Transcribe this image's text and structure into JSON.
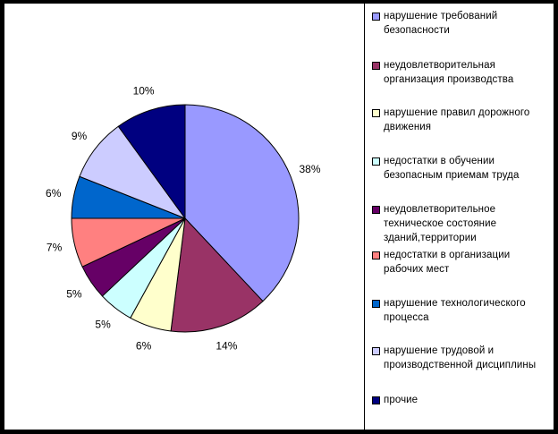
{
  "chart_data": {
    "type": "pie",
    "start": "12 o'clock",
    "direction": "clockwise",
    "slices": [
      {
        "label": "нарушение требований безопасности",
        "value": 38,
        "display": "38%",
        "color": "#9999FF"
      },
      {
        "label": "неудовлетворительная организация производства",
        "value": 14,
        "display": "14%",
        "color": "#993366"
      },
      {
        "label": "нарушение правил дорожного движения",
        "value": 6,
        "display": "6%",
        "color": "#FFFFCC"
      },
      {
        "label": "недостатки в обучении безопасным приемам труда",
        "value": 5,
        "display": "5%",
        "color": "#CCFFFF"
      },
      {
        "label": "неудовлетворительное техническое состояние зданий,территории",
        "value": 5,
        "display": "5%",
        "color": "#660066"
      },
      {
        "label": "недостатки в организации рабочих мест",
        "value": 7,
        "display": "7%",
        "color": "#FF8080"
      },
      {
        "label": "нарушение технологического процесса",
        "value": 6,
        "display": "6%",
        "color": "#0066CC"
      },
      {
        "label": "нарушение трудовой и производственной дисциплины",
        "value": 9,
        "display": "9%",
        "color": "#CCCCFF"
      },
      {
        "label": "прочие",
        "value": 10,
        "display": "10%",
        "color": "#000080"
      }
    ],
    "legend": "right"
  }
}
